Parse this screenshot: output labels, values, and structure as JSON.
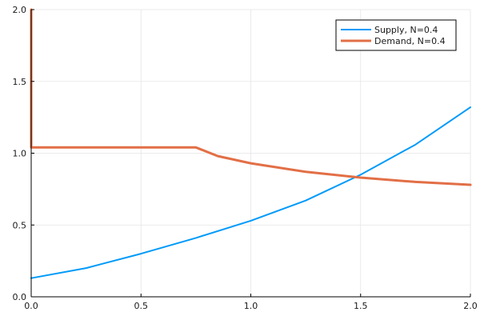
{
  "chart_data": {
    "type": "line",
    "title": "",
    "xlabel": "",
    "ylabel": "",
    "xlim": [
      0,
      2
    ],
    "ylim": [
      0,
      2
    ],
    "xticks": [
      {
        "value": 0,
        "label": "0.0"
      },
      {
        "value": 0.5,
        "label": "0.5"
      },
      {
        "value": 1,
        "label": "1.0"
      },
      {
        "value": 1.5,
        "label": "1.5"
      },
      {
        "value": 2,
        "label": "2.0"
      }
    ],
    "yticks": [
      {
        "value": 0,
        "label": "0.0"
      },
      {
        "value": 0.5,
        "label": "0.5"
      },
      {
        "value": 1,
        "label": "1.0"
      },
      {
        "value": 1.5,
        "label": "1.5"
      },
      {
        "value": 2,
        "label": "2.0"
      }
    ],
    "grid": true,
    "legend_position": "top-right",
    "series": [
      {
        "name": "Supply, N=0.4",
        "color": "#009af9",
        "x": [
          0,
          0.25,
          0.5,
          0.75,
          1.0,
          1.25,
          1.5,
          1.75,
          2.0
        ],
        "y": [
          0.13,
          0.2,
          0.3,
          0.41,
          0.53,
          0.67,
          0.85,
          1.06,
          1.32
        ]
      },
      {
        "name": "Demand, N=0.4",
        "color": "#e26f46",
        "x": [
          0,
          0,
          0.75,
          0.85,
          1.0,
          1.25,
          1.5,
          1.75,
          2.0
        ],
        "y": [
          2.0,
          1.04,
          1.04,
          0.98,
          0.93,
          0.87,
          0.83,
          0.8,
          0.78
        ]
      }
    ]
  }
}
